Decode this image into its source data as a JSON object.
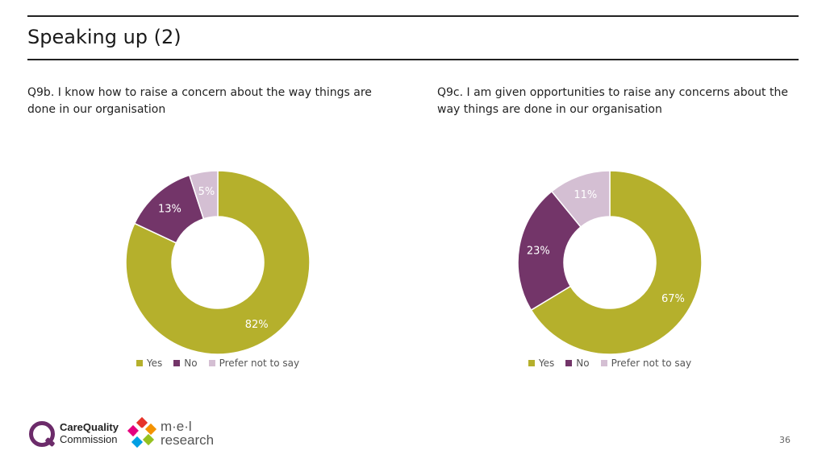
{
  "header": {
    "title": "Speaking up (2)"
  },
  "colors": {
    "yes": "#b5b02c",
    "no": "#733569",
    "prefer": "#d4bfd3",
    "label_light": "#ffffff",
    "label_prefer": "#ffffff"
  },
  "legend_labels": [
    "Yes",
    "No",
    "Prefer not to say"
  ],
  "chart_data": [
    {
      "type": "pie",
      "title": "Q9b. I know how to raise a concern about the way things are done in our organisation",
      "categories": [
        "Yes",
        "No",
        "Prefer not to say"
      ],
      "values": [
        82,
        13,
        5
      ],
      "labels": [
        "82%",
        "13%",
        "5%"
      ],
      "donut": true,
      "legend_position": "bottom"
    },
    {
      "type": "pie",
      "title": "Q9c. I am given opportunities to raise any concerns about the way things are done in our organisation",
      "categories": [
        "Yes",
        "No",
        "Prefer not to say"
      ],
      "values": [
        67,
        23,
        11
      ],
      "labels": [
        "67%",
        "23%",
        "11%"
      ],
      "donut": true,
      "legend_position": "bottom"
    }
  ],
  "footer": {
    "cqc_line1": "CareQuality",
    "cqc_line2": "Commission",
    "mel_line1": "m·e·l",
    "mel_line2": "research",
    "page_number": "36"
  }
}
